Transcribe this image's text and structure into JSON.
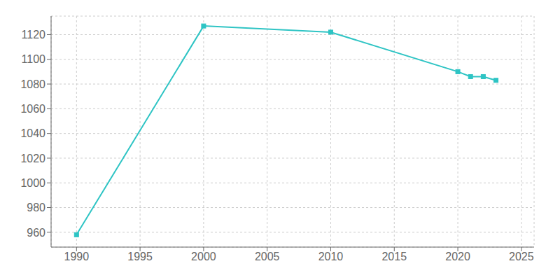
{
  "chart_data": {
    "type": "line",
    "x": [
      1990,
      2000,
      2010,
      2020,
      2021,
      2022,
      2023
    ],
    "values": [
      958,
      1127,
      1122,
      1090,
      1086,
      1086,
      1083
    ],
    "color": "#2EC4C4",
    "marker": "square",
    "xlim": [
      1988,
      2026
    ],
    "ylim": [
      948,
      1135
    ],
    "xticks": [
      1990,
      1995,
      2000,
      2005,
      2010,
      2015,
      2020,
      2025
    ],
    "yticks": [
      960,
      980,
      1000,
      1020,
      1040,
      1060,
      1080,
      1100,
      1120
    ],
    "grid": true
  }
}
